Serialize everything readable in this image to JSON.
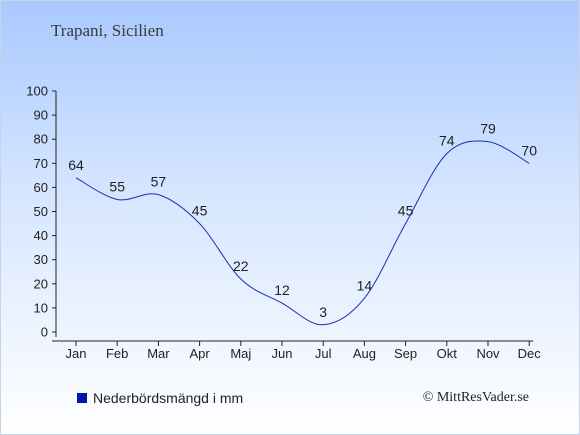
{
  "title": "Trapani, Sicilien",
  "legend": {
    "label": "Nederbördsmängd i mm",
    "swatch_color": "#0016a8"
  },
  "credit": "© MittResVader.se",
  "chart_data": {
    "type": "line",
    "title": "Trapani, Sicilien",
    "categories": [
      "Jan",
      "Feb",
      "Mar",
      "Apr",
      "Maj",
      "Jun",
      "Jul",
      "Aug",
      "Sep",
      "Okt",
      "Nov",
      "Dec"
    ],
    "series": [
      {
        "name": "Nederbördsmängd i mm",
        "values": [
          64,
          55,
          57,
          45,
          22,
          12,
          3,
          14,
          45,
          74,
          79,
          70
        ],
        "color": "#1a2fb0"
      }
    ],
    "ylim": [
      0,
      100
    ],
    "yticks": [
      0,
      10,
      20,
      30,
      40,
      50,
      60,
      70,
      80,
      90,
      100
    ],
    "grid": false,
    "legend_position": "bottom-left",
    "data_labels": true
  }
}
